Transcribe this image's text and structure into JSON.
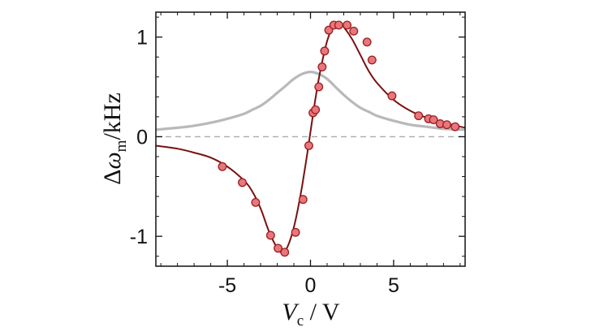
{
  "chart_data": {
    "type": "scatter",
    "xlabel": "V_c / V",
    "ylabel": "Δω_m /kHz",
    "xlim": [
      -9.3,
      9.3
    ],
    "ylim": [
      -1.3,
      1.25
    ],
    "xticks": [
      -5,
      0,
      5
    ],
    "xtick_labels": [
      "-5",
      "0",
      "5"
    ],
    "yticks": [
      -1,
      0,
      1
    ],
    "ytick_labels": [
      "-1",
      "0",
      "1"
    ],
    "zero_line": "dashed",
    "grid": false,
    "legend": "none",
    "series": [
      {
        "kind": "points",
        "color": "#e8767c",
        "edge_color": "#9a1e1e",
        "x": [
          -5.3,
          -4.1,
          -3.3,
          -2.4,
          -1.95,
          -1.55,
          -0.9,
          -0.45,
          -0.1,
          0.15,
          0.3,
          0.5,
          0.7,
          0.85,
          1.1,
          1.4,
          1.7,
          2.2,
          2.6,
          3.4,
          3.7,
          4.9,
          6.5,
          7.1,
          7.4,
          7.8,
          8.2,
          8.7
        ],
        "y": [
          -0.3,
          -0.46,
          -0.66,
          -0.99,
          -1.12,
          -1.16,
          -0.96,
          -0.63,
          -0.09,
          0.24,
          0.27,
          0.5,
          0.7,
          0.86,
          1.07,
          1.12,
          1.12,
          1.12,
          1.06,
          0.95,
          0.77,
          0.41,
          0.21,
          0.18,
          0.17,
          0.13,
          0.12,
          0.1
        ]
      },
      {
        "kind": "fit",
        "color": "#7a1010",
        "x": [
          -9.3,
          -8,
          -7,
          -6,
          -5,
          -4,
          -3.5,
          -3,
          -2.5,
          -2,
          -1.75,
          -1.5,
          -1.25,
          -1,
          -0.75,
          -0.5,
          -0.25,
          0,
          0.25,
          0.5,
          0.75,
          1,
          1.25,
          1.5,
          1.75,
          2,
          2.5,
          3,
          3.5,
          4,
          5,
          6,
          7,
          8,
          9.3
        ],
        "y": [
          -0.09,
          -0.12,
          -0.16,
          -0.21,
          -0.3,
          -0.44,
          -0.55,
          -0.72,
          -0.95,
          -1.12,
          -1.16,
          -1.14,
          -1.05,
          -0.91,
          -0.72,
          -0.49,
          -0.23,
          0.05,
          0.33,
          0.58,
          0.79,
          0.96,
          1.07,
          1.12,
          1.13,
          1.1,
          0.98,
          0.82,
          0.66,
          0.54,
          0.37,
          0.26,
          0.19,
          0.14,
          0.09
        ]
      },
      {
        "kind": "reference",
        "color": "#b9b9b9",
        "x": [
          -9.3,
          -8,
          -7,
          -6,
          -5,
          -4,
          -3.5,
          -3,
          -2.5,
          -2,
          -1.5,
          -1,
          -0.5,
          0,
          0.5,
          1,
          1.5,
          2,
          2.5,
          3,
          3.5,
          4,
          5,
          6,
          7,
          8,
          9.3
        ],
        "y": [
          0.07,
          0.09,
          0.11,
          0.14,
          0.18,
          0.23,
          0.27,
          0.31,
          0.37,
          0.44,
          0.51,
          0.58,
          0.63,
          0.65,
          0.63,
          0.58,
          0.5,
          0.42,
          0.35,
          0.29,
          0.25,
          0.21,
          0.16,
          0.12,
          0.1,
          0.08,
          0.07
        ]
      }
    ]
  }
}
